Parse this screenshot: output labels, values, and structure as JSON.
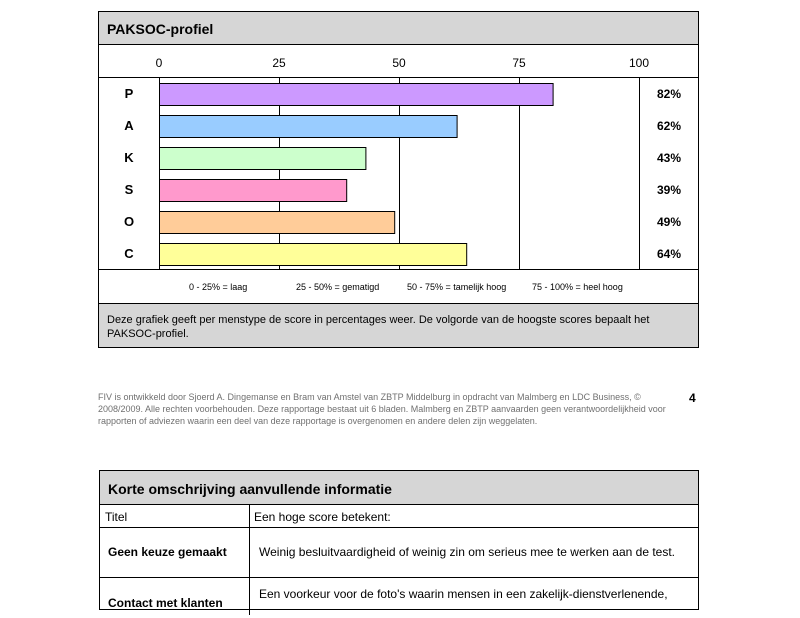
{
  "chart_data": {
    "type": "bar",
    "title": "PAKSOC-profiel",
    "categories": [
      "P",
      "A",
      "K",
      "S",
      "O",
      "C"
    ],
    "values": [
      82,
      62,
      43,
      39,
      49,
      64
    ],
    "value_labels": [
      "82%",
      "62%",
      "43%",
      "39%",
      "49%",
      "64%"
    ],
    "colors": [
      "#cc99ff",
      "#99ccff",
      "#ccffcc",
      "#ff99cc",
      "#ffcc99",
      "#ffff99"
    ],
    "xlim": [
      0,
      100
    ],
    "ticks": [
      "0",
      "25",
      "50",
      "75",
      "100"
    ],
    "grid": true,
    "legend": [
      "0 - 25% = laag",
      "25 - 50% = gematigd",
      "50 - 75% = tamelijk hoog",
      "75 - 100% = heel hoog"
    ],
    "description": "Deze grafiek geeft per menstype de score in percentages weer. De volgorde van de hoogste scores bepaalt het PAKSOC-profiel."
  },
  "footer": {
    "text": "FIV is ontwikkeld door Sjoerd A. Dingemanse en Bram van Amstel van ZBTP Middelburg in opdracht van Malmberg en LDC Business, © 2008/2009. Alle rechten voorbehouden. Deze rapportage bestaat uit 6 bladen. Malmberg en ZBTP aanvaarden geen verantwoordelijkheid voor rapporten of adviezen waarin een deel van deze rapportage is overgenomen en andere delen zijn weggelaten.",
    "page_number": "4"
  },
  "info_table": {
    "title": "Korte omschrijving aanvullende informatie",
    "headers": [
      "Titel",
      "Een hoge score betekent:"
    ],
    "rows": [
      {
        "title": "Geen keuze gemaakt",
        "meaning": "Weinig besluitvaardigheid of weinig zin om serieus mee te werken aan de test."
      },
      {
        "title": "Contact met klanten",
        "meaning": "Een voorkeur voor de foto's waarin mensen in een zakelijk-dienstverlenende,"
      }
    ]
  }
}
